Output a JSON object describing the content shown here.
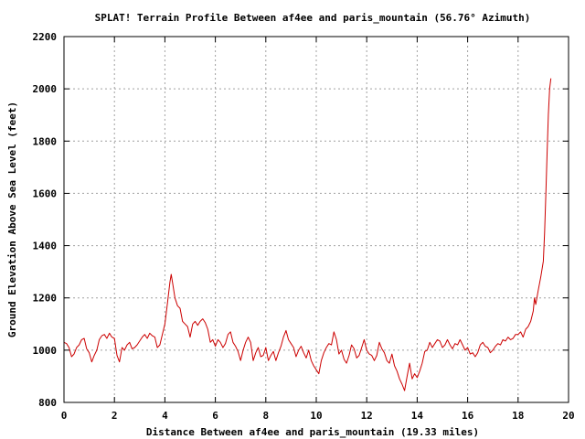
{
  "chart_data": {
    "type": "line",
    "title": "SPLAT! Terrain Profile Between af4ee and paris_mountain (56.76° Azimuth)",
    "xlabel": "Distance Between af4ee and paris_mountain (19.33 miles)",
    "ylabel": "Ground Elevation Above Sea Level (feet)",
    "xlim": [
      0,
      20
    ],
    "ylim": [
      800,
      2200
    ],
    "xticks": [
      0,
      2,
      4,
      6,
      8,
      10,
      12,
      14,
      16,
      18,
      20
    ],
    "yticks": [
      800,
      1000,
      1200,
      1400,
      1600,
      1800,
      2000,
      2200
    ],
    "grid": true,
    "series": [
      {
        "color": "#cc0000",
        "points": [
          [
            0.0,
            1030
          ],
          [
            0.1,
            1025
          ],
          [
            0.2,
            1010
          ],
          [
            0.3,
            975
          ],
          [
            0.4,
            985
          ],
          [
            0.5,
            1010
          ],
          [
            0.6,
            1020
          ],
          [
            0.7,
            1040
          ],
          [
            0.8,
            1045
          ],
          [
            0.9,
            1005
          ],
          [
            1.0,
            990
          ],
          [
            1.1,
            955
          ],
          [
            1.2,
            980
          ],
          [
            1.3,
            1000
          ],
          [
            1.4,
            1040
          ],
          [
            1.5,
            1055
          ],
          [
            1.6,
            1060
          ],
          [
            1.7,
            1045
          ],
          [
            1.8,
            1065
          ],
          [
            1.9,
            1050
          ],
          [
            2.0,
            1045
          ],
          [
            2.1,
            980
          ],
          [
            2.2,
            955
          ],
          [
            2.3,
            1010
          ],
          [
            2.4,
            1000
          ],
          [
            2.5,
            1020
          ],
          [
            2.6,
            1030
          ],
          [
            2.7,
            1005
          ],
          [
            2.8,
            1010
          ],
          [
            2.9,
            1020
          ],
          [
            3.0,
            1035
          ],
          [
            3.1,
            1050
          ],
          [
            3.2,
            1060
          ],
          [
            3.3,
            1045
          ],
          [
            3.4,
            1065
          ],
          [
            3.5,
            1055
          ],
          [
            3.6,
            1050
          ],
          [
            3.7,
            1010
          ],
          [
            3.8,
            1020
          ],
          [
            3.9,
            1060
          ],
          [
            4.0,
            1100
          ],
          [
            4.1,
            1180
          ],
          [
            4.2,
            1260
          ],
          [
            4.25,
            1290
          ],
          [
            4.3,
            1260
          ],
          [
            4.4,
            1200
          ],
          [
            4.5,
            1170
          ],
          [
            4.6,
            1160
          ],
          [
            4.7,
            1110
          ],
          [
            4.8,
            1100
          ],
          [
            4.9,
            1090
          ],
          [
            5.0,
            1050
          ],
          [
            5.1,
            1100
          ],
          [
            5.2,
            1110
          ],
          [
            5.3,
            1095
          ],
          [
            5.4,
            1110
          ],
          [
            5.5,
            1120
          ],
          [
            5.6,
            1105
          ],
          [
            5.7,
            1080
          ],
          [
            5.8,
            1030
          ],
          [
            5.9,
            1040
          ],
          [
            6.0,
            1015
          ],
          [
            6.1,
            1040
          ],
          [
            6.2,
            1030
          ],
          [
            6.3,
            1010
          ],
          [
            6.4,
            1025
          ],
          [
            6.5,
            1060
          ],
          [
            6.6,
            1070
          ],
          [
            6.7,
            1030
          ],
          [
            6.8,
            1015
          ],
          [
            6.9,
            995
          ],
          [
            7.0,
            960
          ],
          [
            7.1,
            1000
          ],
          [
            7.2,
            1030
          ],
          [
            7.3,
            1050
          ],
          [
            7.4,
            1030
          ],
          [
            7.5,
            960
          ],
          [
            7.6,
            990
          ],
          [
            7.7,
            1010
          ],
          [
            7.8,
            975
          ],
          [
            7.9,
            980
          ],
          [
            8.0,
            1010
          ],
          [
            8.1,
            960
          ],
          [
            8.2,
            980
          ],
          [
            8.3,
            995
          ],
          [
            8.4,
            960
          ],
          [
            8.5,
            990
          ],
          [
            8.6,
            1015
          ],
          [
            8.7,
            1050
          ],
          [
            8.8,
            1075
          ],
          [
            8.9,
            1040
          ],
          [
            9.0,
            1025
          ],
          [
            9.1,
            1010
          ],
          [
            9.2,
            975
          ],
          [
            9.3,
            1000
          ],
          [
            9.4,
            1015
          ],
          [
            9.5,
            990
          ],
          [
            9.6,
            970
          ],
          [
            9.7,
            1000
          ],
          [
            9.8,
            960
          ],
          [
            9.9,
            940
          ],
          [
            10.0,
            925
          ],
          [
            10.1,
            910
          ],
          [
            10.2,
            960
          ],
          [
            10.3,
            990
          ],
          [
            10.4,
            1010
          ],
          [
            10.5,
            1025
          ],
          [
            10.6,
            1020
          ],
          [
            10.7,
            1070
          ],
          [
            10.8,
            1040
          ],
          [
            10.9,
            985
          ],
          [
            11.0,
            1000
          ],
          [
            11.1,
            965
          ],
          [
            11.2,
            950
          ],
          [
            11.3,
            980
          ],
          [
            11.4,
            1020
          ],
          [
            11.5,
            1005
          ],
          [
            11.6,
            970
          ],
          [
            11.7,
            980
          ],
          [
            11.8,
            1010
          ],
          [
            11.9,
            1040
          ],
          [
            12.0,
            1000
          ],
          [
            12.1,
            985
          ],
          [
            12.2,
            980
          ],
          [
            12.3,
            960
          ],
          [
            12.4,
            980
          ],
          [
            12.5,
            1030
          ],
          [
            12.6,
            1005
          ],
          [
            12.7,
            990
          ],
          [
            12.8,
            960
          ],
          [
            12.9,
            950
          ],
          [
            13.0,
            985
          ],
          [
            13.1,
            940
          ],
          [
            13.2,
            920
          ],
          [
            13.3,
            890
          ],
          [
            13.4,
            870
          ],
          [
            13.5,
            845
          ],
          [
            13.6,
            900
          ],
          [
            13.7,
            950
          ],
          [
            13.8,
            890
          ],
          [
            13.9,
            910
          ],
          [
            14.0,
            895
          ],
          [
            14.1,
            920
          ],
          [
            14.2,
            950
          ],
          [
            14.3,
            995
          ],
          [
            14.4,
            1000
          ],
          [
            14.5,
            1030
          ],
          [
            14.6,
            1010
          ],
          [
            14.7,
            1025
          ],
          [
            14.8,
            1040
          ],
          [
            14.9,
            1035
          ],
          [
            15.0,
            1010
          ],
          [
            15.1,
            1020
          ],
          [
            15.2,
            1040
          ],
          [
            15.3,
            1020
          ],
          [
            15.4,
            1005
          ],
          [
            15.5,
            1025
          ],
          [
            15.6,
            1020
          ],
          [
            15.7,
            1040
          ],
          [
            15.8,
            1020
          ],
          [
            15.9,
            1000
          ],
          [
            16.0,
            1010
          ],
          [
            16.1,
            985
          ],
          [
            16.2,
            990
          ],
          [
            16.3,
            975
          ],
          [
            16.4,
            990
          ],
          [
            16.5,
            1020
          ],
          [
            16.6,
            1030
          ],
          [
            16.7,
            1015
          ],
          [
            16.8,
            1010
          ],
          [
            16.9,
            990
          ],
          [
            17.0,
            1000
          ],
          [
            17.1,
            1015
          ],
          [
            17.2,
            1025
          ],
          [
            17.3,
            1020
          ],
          [
            17.4,
            1040
          ],
          [
            17.5,
            1035
          ],
          [
            17.6,
            1050
          ],
          [
            17.7,
            1040
          ],
          [
            17.8,
            1045
          ],
          [
            17.9,
            1060
          ],
          [
            18.0,
            1060
          ],
          [
            18.1,
            1070
          ],
          [
            18.2,
            1050
          ],
          [
            18.3,
            1080
          ],
          [
            18.4,
            1090
          ],
          [
            18.5,
            1110
          ],
          [
            18.6,
            1150
          ],
          [
            18.65,
            1200
          ],
          [
            18.7,
            1175
          ],
          [
            18.8,
            1230
          ],
          [
            18.9,
            1280
          ],
          [
            19.0,
            1340
          ],
          [
            19.05,
            1450
          ],
          [
            19.1,
            1600
          ],
          [
            19.15,
            1750
          ],
          [
            19.2,
            1900
          ],
          [
            19.25,
            2000
          ],
          [
            19.3,
            2040
          ]
        ]
      }
    ]
  }
}
